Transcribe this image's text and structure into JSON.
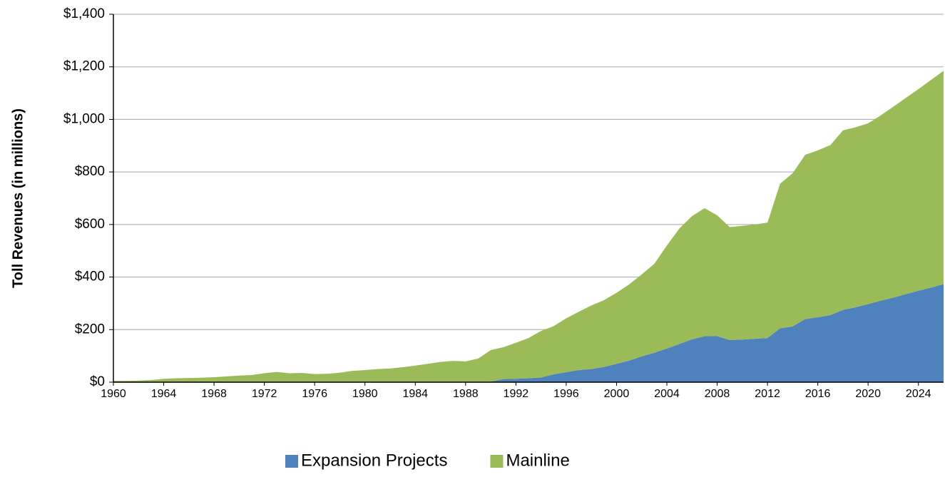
{
  "chart_data": {
    "type": "stacked_area",
    "y_label": "Toll Revenues (in millions)",
    "x": [
      1960,
      1961,
      1962,
      1963,
      1964,
      1965,
      1966,
      1967,
      1968,
      1969,
      1970,
      1971,
      1972,
      1973,
      1974,
      1975,
      1976,
      1977,
      1978,
      1979,
      1980,
      1981,
      1982,
      1983,
      1984,
      1985,
      1986,
      1987,
      1988,
      1989,
      1990,
      1991,
      1992,
      1993,
      1994,
      1995,
      1996,
      1997,
      1998,
      1999,
      2000,
      2001,
      2002,
      2003,
      2004,
      2005,
      2006,
      2007,
      2008,
      2009,
      2010,
      2011,
      2012,
      2013,
      2014,
      2015,
      2016,
      2017,
      2018,
      2019,
      2020,
      2021,
      2022,
      2023,
      2024,
      2025,
      2026
    ],
    "series": [
      {
        "name": "Expansion Projects",
        "color": "#4f81bd",
        "values": [
          0,
          0,
          0,
          0,
          0,
          0,
          0,
          0,
          0,
          0,
          0,
          0,
          0,
          0,
          0,
          0,
          0,
          0,
          0,
          0,
          0,
          0,
          0,
          0,
          0,
          0,
          0,
          0,
          0,
          0,
          2,
          12,
          13,
          15,
          18,
          30,
          38,
          46,
          50,
          58,
          70,
          82,
          98,
          112,
          128,
          145,
          163,
          175,
          175,
          160,
          162,
          165,
          168,
          205,
          212,
          240,
          247,
          255,
          275,
          285,
          297,
          310,
          322,
          335,
          348,
          360,
          373
        ]
      },
      {
        "name": "Mainline",
        "color": "#9bbb59",
        "values": [
          5,
          5,
          6,
          8,
          13,
          15,
          16,
          17,
          19,
          22,
          25,
          27,
          34,
          39,
          34,
          35,
          31,
          32,
          36,
          43,
          46,
          50,
          52,
          57,
          63,
          70,
          77,
          81,
          79,
          90,
          120,
          121,
          137,
          153,
          177,
          183,
          205,
          222,
          242,
          254,
          270,
          290,
          312,
          338,
          392,
          440,
          469,
          487,
          460,
          430,
          433,
          435,
          439,
          550,
          583,
          625,
          635,
          647,
          683,
          685,
          688,
          705,
          726,
          747,
          767,
          790,
          812
        ]
      }
    ],
    "xlim": [
      1960,
      2026
    ],
    "xticks": [
      1960,
      1964,
      1968,
      1972,
      1976,
      1980,
      1984,
      1988,
      1992,
      1996,
      2000,
      2004,
      2008,
      2012,
      2016,
      2020,
      2024
    ],
    "ylim": [
      0,
      1400
    ],
    "yticks": [
      {
        "value": 0,
        "label": "$0"
      },
      {
        "value": 200,
        "label": "$200"
      },
      {
        "value": 400,
        "label": "$400"
      },
      {
        "value": 600,
        "label": "$600"
      },
      {
        "value": 800,
        "label": "$800"
      },
      {
        "value": 1000,
        "label": "$1,000"
      },
      {
        "value": 1200,
        "label": "$1,200"
      },
      {
        "value": 1400,
        "label": "$1,400"
      }
    ],
    "grid": true,
    "legend": "bottom"
  }
}
